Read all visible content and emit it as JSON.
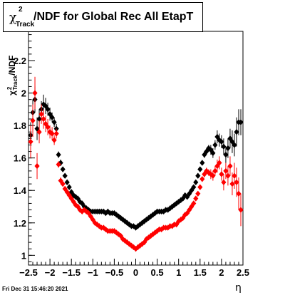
{
  "header": {
    "title_chi": "χ",
    "title_sup": "2",
    "title_sub": "Track",
    "title_main": "/NDF for Global Rec All EtapT"
  },
  "footer": {
    "timestamp": "Fri Dec 31 15:46:20 2021"
  },
  "chart_data": {
    "type": "scatter",
    "title": "χ²Track/NDF for Global Rec All EtapT",
    "xlabel": "η",
    "ylabel": "χ²Track/NDF",
    "xlim": [
      -2.5,
      2.5
    ],
    "ylim": [
      0.94,
      2.38
    ],
    "grid": true,
    "x_ticks": [
      "−2.5",
      "−2",
      "−1.5",
      "−1",
      "−0.5",
      "0",
      "0.5",
      "1",
      "1.5",
      "2",
      "2.5"
    ],
    "x_tick_values": [
      -2.5,
      -2,
      -1.5,
      -1,
      -0.5,
      0,
      0.5,
      1,
      1.5,
      2,
      2.5
    ],
    "y_ticks": [
      "1",
      "1.2",
      "1.4",
      "1.6",
      "1.8",
      "2",
      "2.2"
    ],
    "y_tick_values": [
      1,
      1.2,
      1.4,
      1.6,
      1.8,
      2,
      2.2
    ],
    "colors": {
      "black_series": "#000000",
      "red_series": "#ff0000"
    },
    "series": [
      {
        "color": "black",
        "marker": "diamond",
        "x": [
          -2.45,
          -2.4,
          -2.35,
          -2.3,
          -2.25,
          -2.2,
          -2.15,
          -2.1,
          -2.05,
          -2.0,
          -1.95,
          -1.9,
          -1.85,
          -1.8,
          -1.75,
          -1.7,
          -1.65,
          -1.6,
          -1.55,
          -1.5,
          -1.45,
          -1.4,
          -1.35,
          -1.3,
          -1.25,
          -1.2,
          -1.15,
          -1.1,
          -1.05,
          -1.0,
          -0.95,
          -0.9,
          -0.85,
          -0.8,
          -0.75,
          -0.7,
          -0.65,
          -0.6,
          -0.55,
          -0.5,
          -0.45,
          -0.4,
          -0.35,
          -0.3,
          -0.25,
          -0.2,
          -0.15,
          -0.1,
          -0.05,
          0.0,
          0.05,
          0.1,
          0.15,
          0.2,
          0.25,
          0.3,
          0.35,
          0.4,
          0.45,
          0.5,
          0.55,
          0.6,
          0.65,
          0.7,
          0.75,
          0.8,
          0.85,
          0.9,
          0.95,
          1.0,
          1.05,
          1.1,
          1.15,
          1.2,
          1.25,
          1.3,
          1.35,
          1.4,
          1.45,
          1.5,
          1.55,
          1.6,
          1.65,
          1.7,
          1.75,
          1.8,
          1.85,
          1.9,
          1.95,
          2.0,
          2.05,
          2.1,
          2.15,
          2.2,
          2.25,
          2.3,
          2.35,
          2.4,
          2.45
        ],
        "y": [
          1.74,
          1.88,
          1.96,
          1.78,
          1.84,
          1.9,
          1.93,
          1.92,
          1.9,
          1.87,
          1.85,
          1.82,
          1.78,
          1.62,
          1.57,
          1.53,
          1.49,
          1.45,
          1.42,
          1.39,
          1.37,
          1.36,
          1.35,
          1.33,
          1.32,
          1.3,
          1.29,
          1.28,
          1.27,
          1.27,
          1.27,
          1.27,
          1.27,
          1.27,
          1.27,
          1.26,
          1.27,
          1.26,
          1.26,
          1.26,
          1.25,
          1.24,
          1.23,
          1.22,
          1.21,
          1.2,
          1.19,
          1.18,
          1.18,
          1.17,
          1.18,
          1.19,
          1.2,
          1.21,
          1.22,
          1.23,
          1.24,
          1.25,
          1.26,
          1.27,
          1.27,
          1.27,
          1.27,
          1.28,
          1.28,
          1.29,
          1.3,
          1.31,
          1.32,
          1.33,
          1.34,
          1.35,
          1.37,
          1.36,
          1.38,
          1.4,
          1.42,
          1.45,
          1.49,
          1.53,
          1.57,
          1.62,
          1.64,
          1.66,
          1.65,
          1.63,
          1.68,
          1.73,
          1.71,
          1.7,
          1.67,
          1.62,
          1.66,
          1.72,
          1.7,
          1.68,
          1.76,
          1.82,
          1.82
        ],
        "errors": [
          0.08,
          0.08,
          0.08,
          0.07,
          0.06,
          0.05,
          0.06,
          0.05,
          0.04,
          0.04,
          0.03,
          0.03,
          0.03,
          0.02,
          0.02,
          0.01,
          0.01,
          0.01,
          0.01,
          0.01,
          0.01,
          0.01,
          0.01,
          0.01,
          0.01,
          0.01,
          0.01,
          0.01,
          0.01,
          0.01,
          0.01,
          0.01,
          0.01,
          0.01,
          0.01,
          0.01,
          0.01,
          0.01,
          0.01,
          0.01,
          0.01,
          0.01,
          0.01,
          0.01,
          0.01,
          0.01,
          0.01,
          0.01,
          0.01,
          0.01,
          0.01,
          0.01,
          0.01,
          0.01,
          0.01,
          0.01,
          0.01,
          0.01,
          0.01,
          0.01,
          0.01,
          0.01,
          0.01,
          0.01,
          0.01,
          0.01,
          0.01,
          0.01,
          0.01,
          0.01,
          0.01,
          0.01,
          0.01,
          0.01,
          0.01,
          0.01,
          0.01,
          0.01,
          0.01,
          0.01,
          0.01,
          0.02,
          0.02,
          0.02,
          0.03,
          0.03,
          0.03,
          0.04,
          0.04,
          0.04,
          0.05,
          0.05,
          0.06,
          0.06,
          0.07,
          0.07,
          0.09,
          0.08,
          0.08
        ]
      },
      {
        "color": "red",
        "marker": "diamond",
        "x": [
          -2.45,
          -2.4,
          -2.35,
          -2.3,
          -2.25,
          -2.2,
          -2.15,
          -2.1,
          -2.05,
          -2.0,
          -1.95,
          -1.9,
          -1.85,
          -1.8,
          -1.75,
          -1.7,
          -1.65,
          -1.6,
          -1.55,
          -1.5,
          -1.45,
          -1.4,
          -1.35,
          -1.3,
          -1.25,
          -1.2,
          -1.15,
          -1.1,
          -1.05,
          -1.0,
          -0.95,
          -0.9,
          -0.85,
          -0.8,
          -0.75,
          -0.7,
          -0.65,
          -0.6,
          -0.55,
          -0.5,
          -0.45,
          -0.4,
          -0.35,
          -0.3,
          -0.25,
          -0.2,
          -0.15,
          -0.1,
          -0.05,
          0.0,
          0.05,
          0.1,
          0.15,
          0.2,
          0.25,
          0.3,
          0.35,
          0.4,
          0.45,
          0.5,
          0.55,
          0.6,
          0.65,
          0.7,
          0.75,
          0.8,
          0.85,
          0.9,
          0.95,
          1.0,
          1.05,
          1.1,
          1.15,
          1.2,
          1.25,
          1.3,
          1.35,
          1.4,
          1.45,
          1.5,
          1.55,
          1.6,
          1.65,
          1.7,
          1.75,
          1.8,
          1.85,
          1.9,
          1.95,
          2.0,
          2.05,
          2.1,
          2.15,
          2.2,
          2.25,
          2.3,
          2.35,
          2.4,
          2.45
        ],
        "y": [
          1.7,
          1.83,
          2.0,
          1.55,
          1.76,
          1.87,
          1.84,
          1.81,
          1.79,
          1.76,
          1.75,
          1.71,
          1.75,
          1.56,
          1.46,
          1.44,
          1.41,
          1.39,
          1.37,
          1.35,
          1.33,
          1.31,
          1.3,
          1.28,
          1.27,
          1.28,
          1.27,
          1.26,
          1.24,
          1.22,
          1.2,
          1.19,
          1.18,
          1.17,
          1.17,
          1.16,
          1.15,
          1.15,
          1.15,
          1.15,
          1.14,
          1.13,
          1.12,
          1.1,
          1.09,
          1.08,
          1.07,
          1.06,
          1.05,
          1.04,
          1.05,
          1.06,
          1.07,
          1.08,
          1.1,
          1.11,
          1.12,
          1.13,
          1.14,
          1.15,
          1.16,
          1.16,
          1.17,
          1.17,
          1.17,
          1.18,
          1.18,
          1.19,
          1.19,
          1.21,
          1.22,
          1.23,
          1.25,
          1.26,
          1.28,
          1.3,
          1.32,
          1.35,
          1.38,
          1.42,
          1.47,
          1.5,
          1.52,
          1.51,
          1.5,
          1.49,
          1.52,
          1.55,
          1.57,
          1.5,
          1.45,
          1.52,
          1.49,
          1.55,
          1.44,
          1.49,
          1.45,
          1.38,
          1.28
        ],
        "errors": [
          0.1,
          0.1,
          0.1,
          0.08,
          0.07,
          0.06,
          0.06,
          0.05,
          0.05,
          0.04,
          0.04,
          0.03,
          0.03,
          0.02,
          0.02,
          0.01,
          0.01,
          0.01,
          0.01,
          0.01,
          0.01,
          0.01,
          0.01,
          0.01,
          0.01,
          0.01,
          0.01,
          0.01,
          0.01,
          0.01,
          0.01,
          0.01,
          0.01,
          0.01,
          0.01,
          0.01,
          0.01,
          0.01,
          0.01,
          0.01,
          0.01,
          0.01,
          0.01,
          0.01,
          0.01,
          0.01,
          0.01,
          0.01,
          0.01,
          0.01,
          0.01,
          0.01,
          0.01,
          0.01,
          0.01,
          0.01,
          0.01,
          0.01,
          0.01,
          0.01,
          0.01,
          0.01,
          0.01,
          0.01,
          0.01,
          0.01,
          0.01,
          0.01,
          0.01,
          0.01,
          0.01,
          0.01,
          0.01,
          0.01,
          0.01,
          0.01,
          0.01,
          0.01,
          0.01,
          0.01,
          0.01,
          0.02,
          0.02,
          0.02,
          0.03,
          0.03,
          0.03,
          0.04,
          0.04,
          0.04,
          0.05,
          0.05,
          0.06,
          0.06,
          0.07,
          0.08,
          0.09,
          0.1,
          0.1
        ]
      }
    ]
  }
}
